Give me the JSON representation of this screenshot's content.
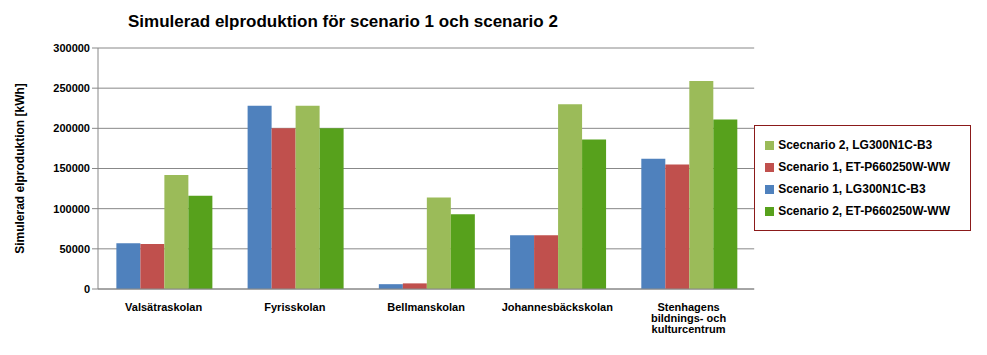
{
  "chart_data": {
    "type": "bar",
    "title": "Simulerad elproduktion för scenario 1 och scenario 2",
    "y_label": "Simulerad elproduktion [kWh]",
    "categories": [
      "Valsätraskolan",
      "Fyrisskolan",
      "Bellmanskolan",
      "Johannesbäckskolan",
      "Stenhagens bildnings- och kulturcentrum"
    ],
    "series": [
      {
        "name": "Scenario 1, LG300N1C-B3",
        "color": "#4F81BD",
        "values": [
          57000,
          228000,
          6000,
          67000,
          162000
        ]
      },
      {
        "name": "Scenario 1, ET-P660250W-WW",
        "color": "#C0504D",
        "values": [
          56000,
          200000,
          7000,
          67000,
          155000
        ]
      },
      {
        "name": "Scecnario 2, LG300N1C-B3",
        "color": "#9BBB59",
        "values": [
          142000,
          228000,
          114000,
          230000,
          259000
        ]
      },
      {
        "name": "Scenario 2, ET-P660250W-WW",
        "color": "#57A11C",
        "values": [
          116000,
          200000,
          93000,
          186000,
          211000
        ]
      }
    ],
    "ylim": [
      0,
      300000
    ],
    "yticks": [
      0,
      50000,
      100000,
      150000,
      200000,
      250000,
      300000
    ],
    "grid": true,
    "legend": "right"
  }
}
